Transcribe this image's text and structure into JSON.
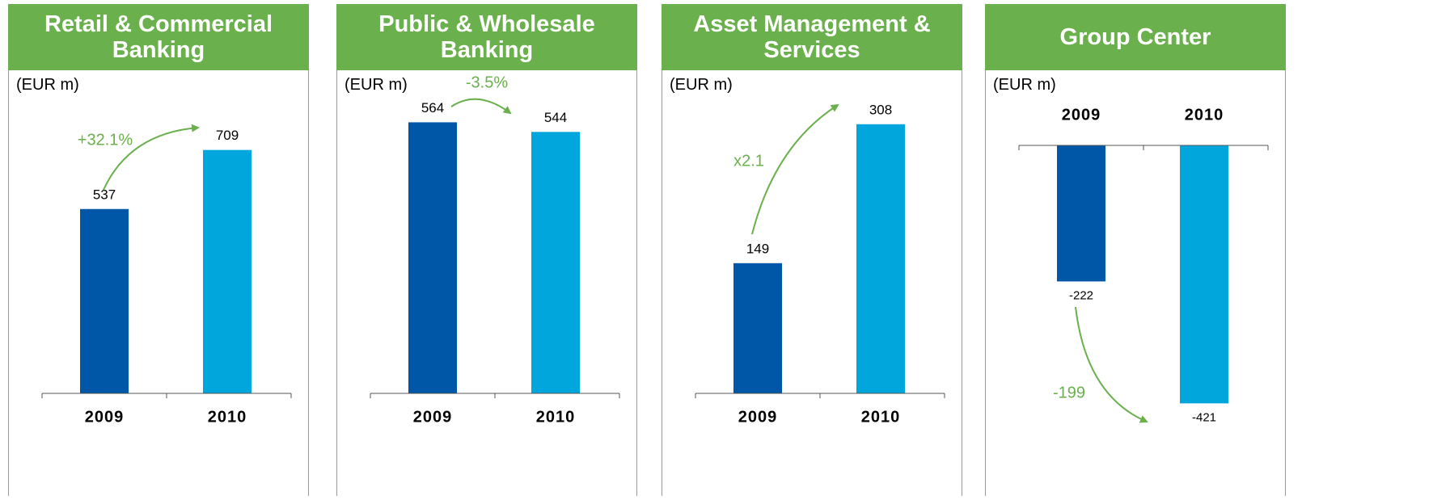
{
  "chart_data": [
    {
      "type": "bar",
      "title": "Retail & Commercial Banking",
      "unit": "(EUR m)",
      "categories": [
        "2009",
        "2010"
      ],
      "values": [
        537,
        709
      ],
      "colors": [
        "#0057a8",
        "#00a6dc"
      ],
      "ylim": [
        0,
        840
      ],
      "annotation": "+32.1%",
      "annotation_color": "#6ab04c"
    },
    {
      "type": "bar",
      "title": "Public & Wholesale Banking",
      "unit": "(EUR m)",
      "categories": [
        "2009",
        "2010"
      ],
      "values": [
        564,
        544
      ],
      "colors": [
        "#0057a8",
        "#00a6dc"
      ],
      "ylim": [
        0,
        600
      ],
      "annotation": "-3.5%",
      "annotation_color": "#6ab04c"
    },
    {
      "type": "bar",
      "title": "Asset Management & Services",
      "unit": "(EUR m)",
      "categories": [
        "2009",
        "2010"
      ],
      "values": [
        149,
        308
      ],
      "colors": [
        "#0057a8",
        "#00a6dc"
      ],
      "ylim": [
        0,
        330
      ],
      "annotation": "x2.1",
      "annotation_color": "#6ab04c"
    },
    {
      "type": "bar",
      "title": "Group Center",
      "unit": "(EUR m)",
      "categories": [
        "2009",
        "2010"
      ],
      "values": [
        -222,
        -421
      ],
      "colors": [
        "#0057a8",
        "#00a6dc"
      ],
      "ylim": [
        -435,
        0
      ],
      "annotation": "-199",
      "annotation_color": "#6ab04c"
    }
  ]
}
